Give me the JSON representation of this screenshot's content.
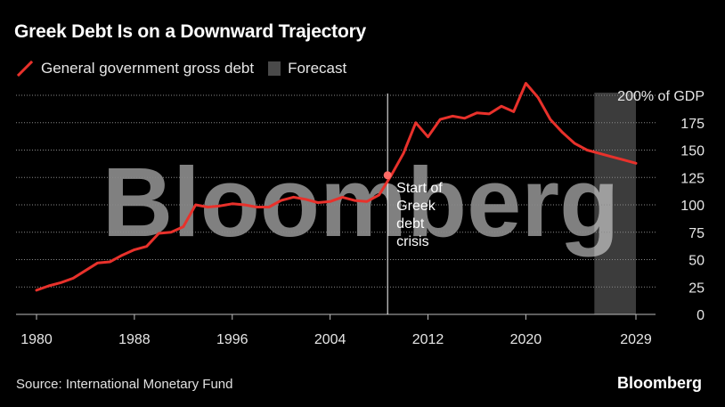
{
  "header": {
    "title": "Greek Debt Is on a Downward Trajectory"
  },
  "legend": {
    "series_label": "General government gross debt",
    "forecast_label": "Forecast"
  },
  "footer": {
    "source": "Source: International Monetary Fund",
    "brand": "Bloomberg"
  },
  "watermark": "Bloomberg",
  "colors": {
    "line": "#e8312b",
    "forecast": "#3c3c3c",
    "background": "#000000",
    "text": "#ffffff"
  },
  "chart_data": {
    "type": "line",
    "title": "Greek Debt Is on a Downward Trajectory",
    "xlabel": "",
    "ylabel": "",
    "x_ticks": [
      "1980",
      "1988",
      "1996",
      "2004",
      "2012",
      "2020",
      "2029"
    ],
    "y_ticks": [
      "0",
      "25",
      "50",
      "75",
      "100",
      "125",
      "150",
      "175",
      "200% of GDP"
    ],
    "xlim": [
      1980,
      2029
    ],
    "ylim": [
      0,
      200
    ],
    "grid": true,
    "legend_position": "top-left",
    "forecast_range": [
      2024,
      2029
    ],
    "series": [
      {
        "name": "General government gross debt",
        "x": [
          1980,
          1981,
          1982,
          1983,
          1984,
          1985,
          1986,
          1987,
          1988,
          1989,
          1990,
          1991,
          1992,
          1993,
          1994,
          1995,
          1996,
          1997,
          1998,
          1999,
          2000,
          2001,
          2002,
          2003,
          2004,
          2005,
          2006,
          2007,
          2008,
          2009,
          2010,
          2011,
          2012,
          2013,
          2014,
          2015,
          2016,
          2017,
          2018,
          2019,
          2020,
          2021,
          2022,
          2023,
          2024,
          2025,
          2026,
          2027,
          2028,
          2029
        ],
        "values": [
          22,
          26,
          29,
          33,
          40,
          47,
          48,
          54,
          59,
          62,
          74,
          75,
          80,
          100,
          98,
          99,
          101,
          100,
          98,
          98,
          104,
          107,
          105,
          102,
          103,
          107,
          104,
          103,
          109,
          127,
          147,
          175,
          162,
          178,
          181,
          179,
          184,
          183,
          190,
          185,
          211,
          198,
          178,
          166,
          156,
          150,
          147,
          144,
          141,
          138
        ]
      }
    ],
    "annotations": [
      {
        "text_lines": [
          "Start of",
          "Greek",
          "debt",
          "crisis"
        ],
        "x": 2008.7,
        "y": 127
      }
    ]
  }
}
